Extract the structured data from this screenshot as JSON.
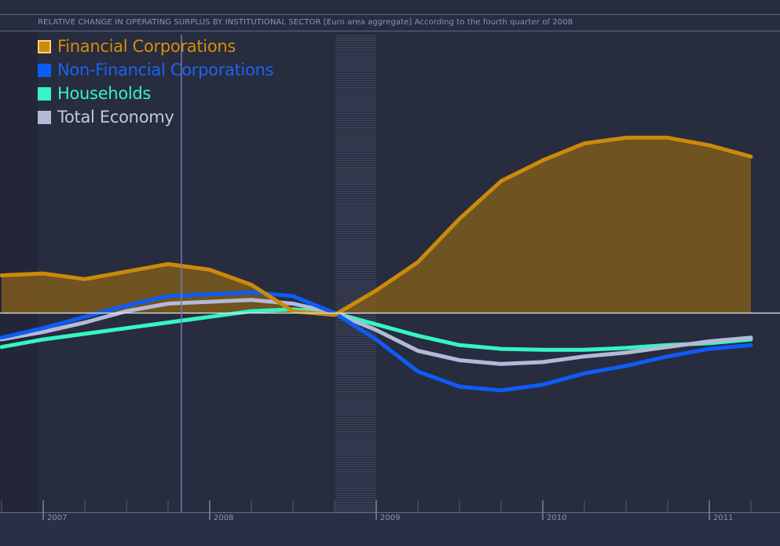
{
  "title": "RELATIVE CHANGE IN OPERATING SURPLUS BY INSTITUTIONAL SECTOR [Euro area aggregate] According to the fourth quarter of 2008",
  "chart_data": {
    "type": "area",
    "x_ticks": [
      "2007",
      "2008",
      "2009",
      "2010",
      "2011"
    ],
    "zero_line": true,
    "cursor_date": "2007 Q4",
    "highlight_period": "2008 Q4",
    "y_range": [
      -12,
      13
    ],
    "series": [
      {
        "name": "Financial Corporations",
        "color": "#cb8a0a",
        "fill": "#7d5a1b",
        "x": [
          2006.75,
          2007.0,
          2007.25,
          2007.5,
          2007.75,
          2008.0,
          2008.25,
          2008.5,
          2008.75,
          2009.0,
          2009.25,
          2009.5,
          2009.75,
          2010.0,
          2010.25,
          2010.5,
          2010.75,
          2011.0,
          2011.25
        ],
        "values": [
          2.0,
          2.1,
          1.8,
          2.2,
          2.6,
          2.3,
          1.5,
          0.1,
          -0.1,
          1.2,
          2.7,
          5.0,
          7.0,
          8.1,
          9.0,
          9.3,
          9.3,
          8.9,
          8.3
        ]
      },
      {
        "name": "Non-Financial Corporations",
        "color": "#0e5cf7",
        "x": [
          2006.75,
          2007.0,
          2007.25,
          2007.5,
          2007.75,
          2008.0,
          2008.25,
          2008.5,
          2008.75,
          2009.0,
          2009.25,
          2009.5,
          2009.75,
          2010.0,
          2010.25,
          2010.5,
          2010.75,
          2011.0,
          2011.25
        ],
        "values": [
          -1.3,
          -0.8,
          -0.2,
          0.4,
          0.9,
          1.0,
          1.1,
          0.9,
          0.0,
          -1.4,
          -3.1,
          -3.9,
          -4.1,
          -3.8,
          -3.2,
          -2.8,
          -2.3,
          -1.9,
          -1.7
        ]
      },
      {
        "name": "Households",
        "color": "#35f5c3",
        "x": [
          2006.75,
          2007.0,
          2007.25,
          2007.5,
          2007.75,
          2008.0,
          2008.25,
          2008.5,
          2008.75,
          2009.0,
          2009.25,
          2009.5,
          2009.75,
          2010.0,
          2010.25,
          2010.5,
          2010.75,
          2011.0,
          2011.25
        ],
        "values": [
          -1.8,
          -1.4,
          -1.1,
          -0.8,
          -0.5,
          -0.2,
          0.1,
          0.2,
          0.0,
          -0.6,
          -1.2,
          -1.7,
          -1.9,
          -1.95,
          -1.95,
          -1.85,
          -1.7,
          -1.6,
          -1.4
        ]
      },
      {
        "name": "Total Economy",
        "color": "#b5b9d8",
        "x": [
          2006.75,
          2007.0,
          2007.25,
          2007.5,
          2007.75,
          2008.0,
          2008.25,
          2008.5,
          2008.75,
          2009.0,
          2009.25,
          2009.5,
          2009.75,
          2010.0,
          2010.25,
          2010.5,
          2010.75,
          2011.0,
          2011.25
        ],
        "values": [
          -1.4,
          -1.0,
          -0.5,
          0.1,
          0.5,
          0.6,
          0.7,
          0.5,
          0.0,
          -0.9,
          -2.0,
          -2.5,
          -2.7,
          -2.6,
          -2.3,
          -2.1,
          -1.8,
          -1.5,
          -1.3
        ]
      }
    ]
  }
}
